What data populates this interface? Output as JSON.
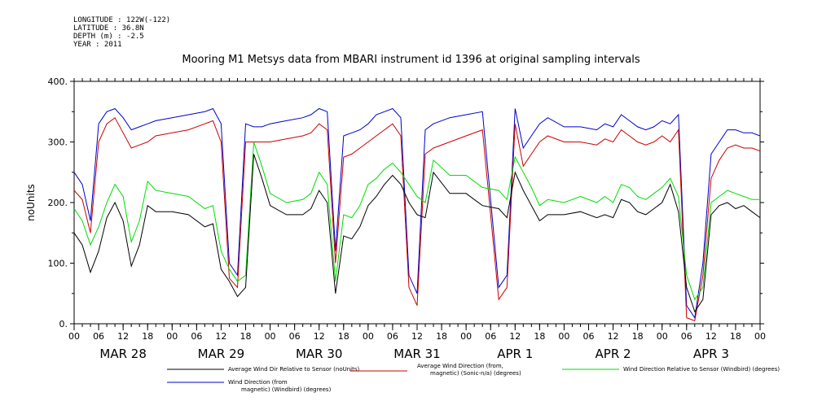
{
  "header": {
    "longitude": "LONGITUDE : 122W(-122)",
    "latitude": "LATITUDE : 36.8N",
    "depth": "DEPTH (m) : -2.5",
    "year": "YEAR : 2011"
  },
  "chart_data": {
    "type": "line",
    "title": "Mooring M1 Metsys data from MBARI instrument id 1396 at original sampling intervals",
    "ylabel": "noUnits",
    "xlabel": "",
    "ylim": [
      0,
      400
    ],
    "y_ticks": [
      "0.",
      "100.",
      "200.",
      "300.",
      "400."
    ],
    "x_range_hours": [
      0,
      168
    ],
    "hour_tick_labels": [
      "00",
      "06",
      "12",
      "18",
      "00",
      "06",
      "12",
      "18",
      "00",
      "06",
      "12",
      "18",
      "00",
      "06",
      "12",
      "18",
      "00",
      "06",
      "12",
      "18",
      "00",
      "06",
      "12",
      "18",
      "00",
      "06",
      "12",
      "18",
      "00"
    ],
    "day_labels": [
      "MAR 28",
      "MAR 29",
      "MAR 30",
      "MAR 31",
      "APR  1",
      "APR  2",
      "APR  3"
    ],
    "grid": false,
    "series": [
      {
        "name": "Average Wind Dir Relative to Sensor (noUnits)",
        "color": "#000000",
        "x": [
          0,
          2,
          4,
          6,
          8,
          10,
          12,
          14,
          16,
          18,
          20,
          24,
          28,
          32,
          34,
          36,
          38,
          40,
          42,
          44,
          46,
          48,
          52,
          56,
          58,
          60,
          62,
          64,
          66,
          68,
          70,
          72,
          74,
          76,
          78,
          80,
          82,
          84,
          86,
          88,
          92,
          96,
          100,
          104,
          106,
          108,
          110,
          112,
          114,
          116,
          120,
          124,
          128,
          130,
          132,
          134,
          136,
          138,
          140,
          142,
          144,
          146,
          148,
          150,
          152,
          154,
          156,
          158,
          160,
          162,
          164,
          166,
          168
        ],
        "y": [
          150,
          130,
          85,
          120,
          175,
          200,
          170,
          95,
          130,
          195,
          185,
          185,
          180,
          160,
          165,
          90,
          70,
          45,
          60,
          280,
          240,
          195,
          180,
          180,
          190,
          220,
          200,
          50,
          145,
          140,
          160,
          195,
          210,
          230,
          245,
          230,
          200,
          180,
          175,
          250,
          215,
          215,
          195,
          190,
          175,
          250,
          220,
          195,
          170,
          180,
          180,
          185,
          175,
          180,
          175,
          205,
          200,
          185,
          180,
          190,
          200,
          230,
          185,
          60,
          20,
          40,
          180,
          195,
          200,
          190,
          195,
          185,
          175
        ]
      },
      {
        "name": "Average Wind Direction (from, magnetic) (Sonic-n/a) (degrees)",
        "color": "#cc0000",
        "x": [
          0,
          2,
          4,
          6,
          8,
          10,
          12,
          14,
          16,
          18,
          20,
          24,
          28,
          32,
          34,
          36,
          38,
          40,
          42,
          44,
          46,
          48,
          52,
          56,
          58,
          60,
          62,
          64,
          66,
          68,
          70,
          72,
          74,
          76,
          78,
          80,
          82,
          84,
          86,
          88,
          92,
          96,
          100,
          104,
          106,
          108,
          110,
          112,
          114,
          116,
          120,
          124,
          128,
          130,
          132,
          134,
          136,
          138,
          140,
          142,
          144,
          146,
          148,
          150,
          152,
          154,
          156,
          158,
          160,
          162,
          164,
          166,
          168
        ],
        "y": [
          220,
          205,
          150,
          300,
          330,
          340,
          315,
          290,
          295,
          300,
          310,
          315,
          320,
          330,
          335,
          300,
          75,
          60,
          300,
          300,
          300,
          300,
          305,
          310,
          315,
          330,
          320,
          100,
          275,
          280,
          290,
          300,
          310,
          320,
          330,
          310,
          60,
          30,
          280,
          290,
          300,
          310,
          320,
          40,
          60,
          330,
          260,
          280,
          300,
          310,
          300,
          300,
          295,
          305,
          300,
          320,
          310,
          300,
          295,
          300,
          310,
          300,
          320,
          10,
          5,
          80,
          240,
          270,
          290,
          295,
          290,
          290,
          285
        ]
      },
      {
        "name": "Wind Direction Relative to Sensor (Windbird) (degrees)",
        "color": "#00dd00",
        "x": [
          0,
          2,
          4,
          6,
          8,
          10,
          12,
          14,
          16,
          18,
          20,
          24,
          28,
          32,
          34,
          36,
          38,
          40,
          42,
          44,
          46,
          48,
          52,
          56,
          58,
          60,
          62,
          64,
          66,
          68,
          70,
          72,
          74,
          76,
          78,
          80,
          82,
          84,
          86,
          88,
          92,
          96,
          100,
          104,
          106,
          108,
          110,
          112,
          114,
          116,
          120,
          124,
          128,
          130,
          132,
          134,
          136,
          138,
          140,
          142,
          144,
          146,
          148,
          150,
          152,
          154,
          156,
          158,
          160,
          162,
          164,
          166,
          168
        ],
        "y": [
          190,
          170,
          130,
          160,
          200,
          230,
          210,
          135,
          170,
          235,
          220,
          215,
          210,
          190,
          195,
          120,
          90,
          70,
          80,
          300,
          260,
          215,
          200,
          205,
          215,
          250,
          230,
          70,
          180,
          175,
          195,
          230,
          240,
          255,
          265,
          250,
          230,
          210,
          200,
          270,
          245,
          245,
          225,
          220,
          205,
          275,
          250,
          225,
          195,
          205,
          200,
          210,
          200,
          210,
          200,
          230,
          225,
          210,
          205,
          215,
          225,
          240,
          210,
          80,
          40,
          60,
          200,
          210,
          220,
          215,
          210,
          205,
          205
        ]
      },
      {
        "name": "Wind Direction (from, magnetic) (Windbird) (degrees)",
        "color": "#0000cc",
        "x": [
          0,
          2,
          4,
          6,
          8,
          10,
          12,
          14,
          16,
          18,
          20,
          24,
          28,
          32,
          34,
          36,
          38,
          40,
          42,
          44,
          46,
          48,
          52,
          56,
          58,
          60,
          62,
          64,
          66,
          68,
          70,
          72,
          74,
          76,
          78,
          80,
          82,
          84,
          86,
          88,
          92,
          96,
          100,
          104,
          106,
          108,
          110,
          112,
          114,
          116,
          120,
          124,
          128,
          130,
          132,
          134,
          136,
          138,
          140,
          142,
          144,
          146,
          148,
          150,
          152,
          154,
          156,
          158,
          160,
          162,
          164,
          166,
          168
        ],
        "y": [
          250,
          230,
          170,
          330,
          350,
          355,
          340,
          320,
          325,
          330,
          335,
          340,
          345,
          350,
          355,
          330,
          100,
          80,
          330,
          325,
          325,
          330,
          335,
          340,
          345,
          355,
          350,
          120,
          310,
          315,
          320,
          330,
          345,
          350,
          355,
          340,
          80,
          50,
          320,
          330,
          340,
          345,
          350,
          60,
          80,
          355,
          290,
          310,
          330,
          340,
          325,
          325,
          320,
          330,
          325,
          345,
          335,
          325,
          320,
          325,
          335,
          330,
          345,
          30,
          10,
          100,
          280,
          300,
          320,
          320,
          315,
          315,
          310
        ]
      }
    ],
    "legend": [
      {
        "text": "Average Wind Dir Relative to Sensor (noUnits)",
        "color": "#000000"
      },
      {
        "text": "Average Wind Direction (from,",
        "text2": "magnetic) (Sonic-n/a) (degrees)",
        "color": "#cc0000"
      },
      {
        "text": "Wind Direction Relative to Sensor (Windbird) (degrees)",
        "color": "#00dd00"
      },
      {
        "text": "Wind Direction (from",
        "text2": "magnetic) (Windbird) (degrees)",
        "color": "#0000cc"
      }
    ]
  }
}
